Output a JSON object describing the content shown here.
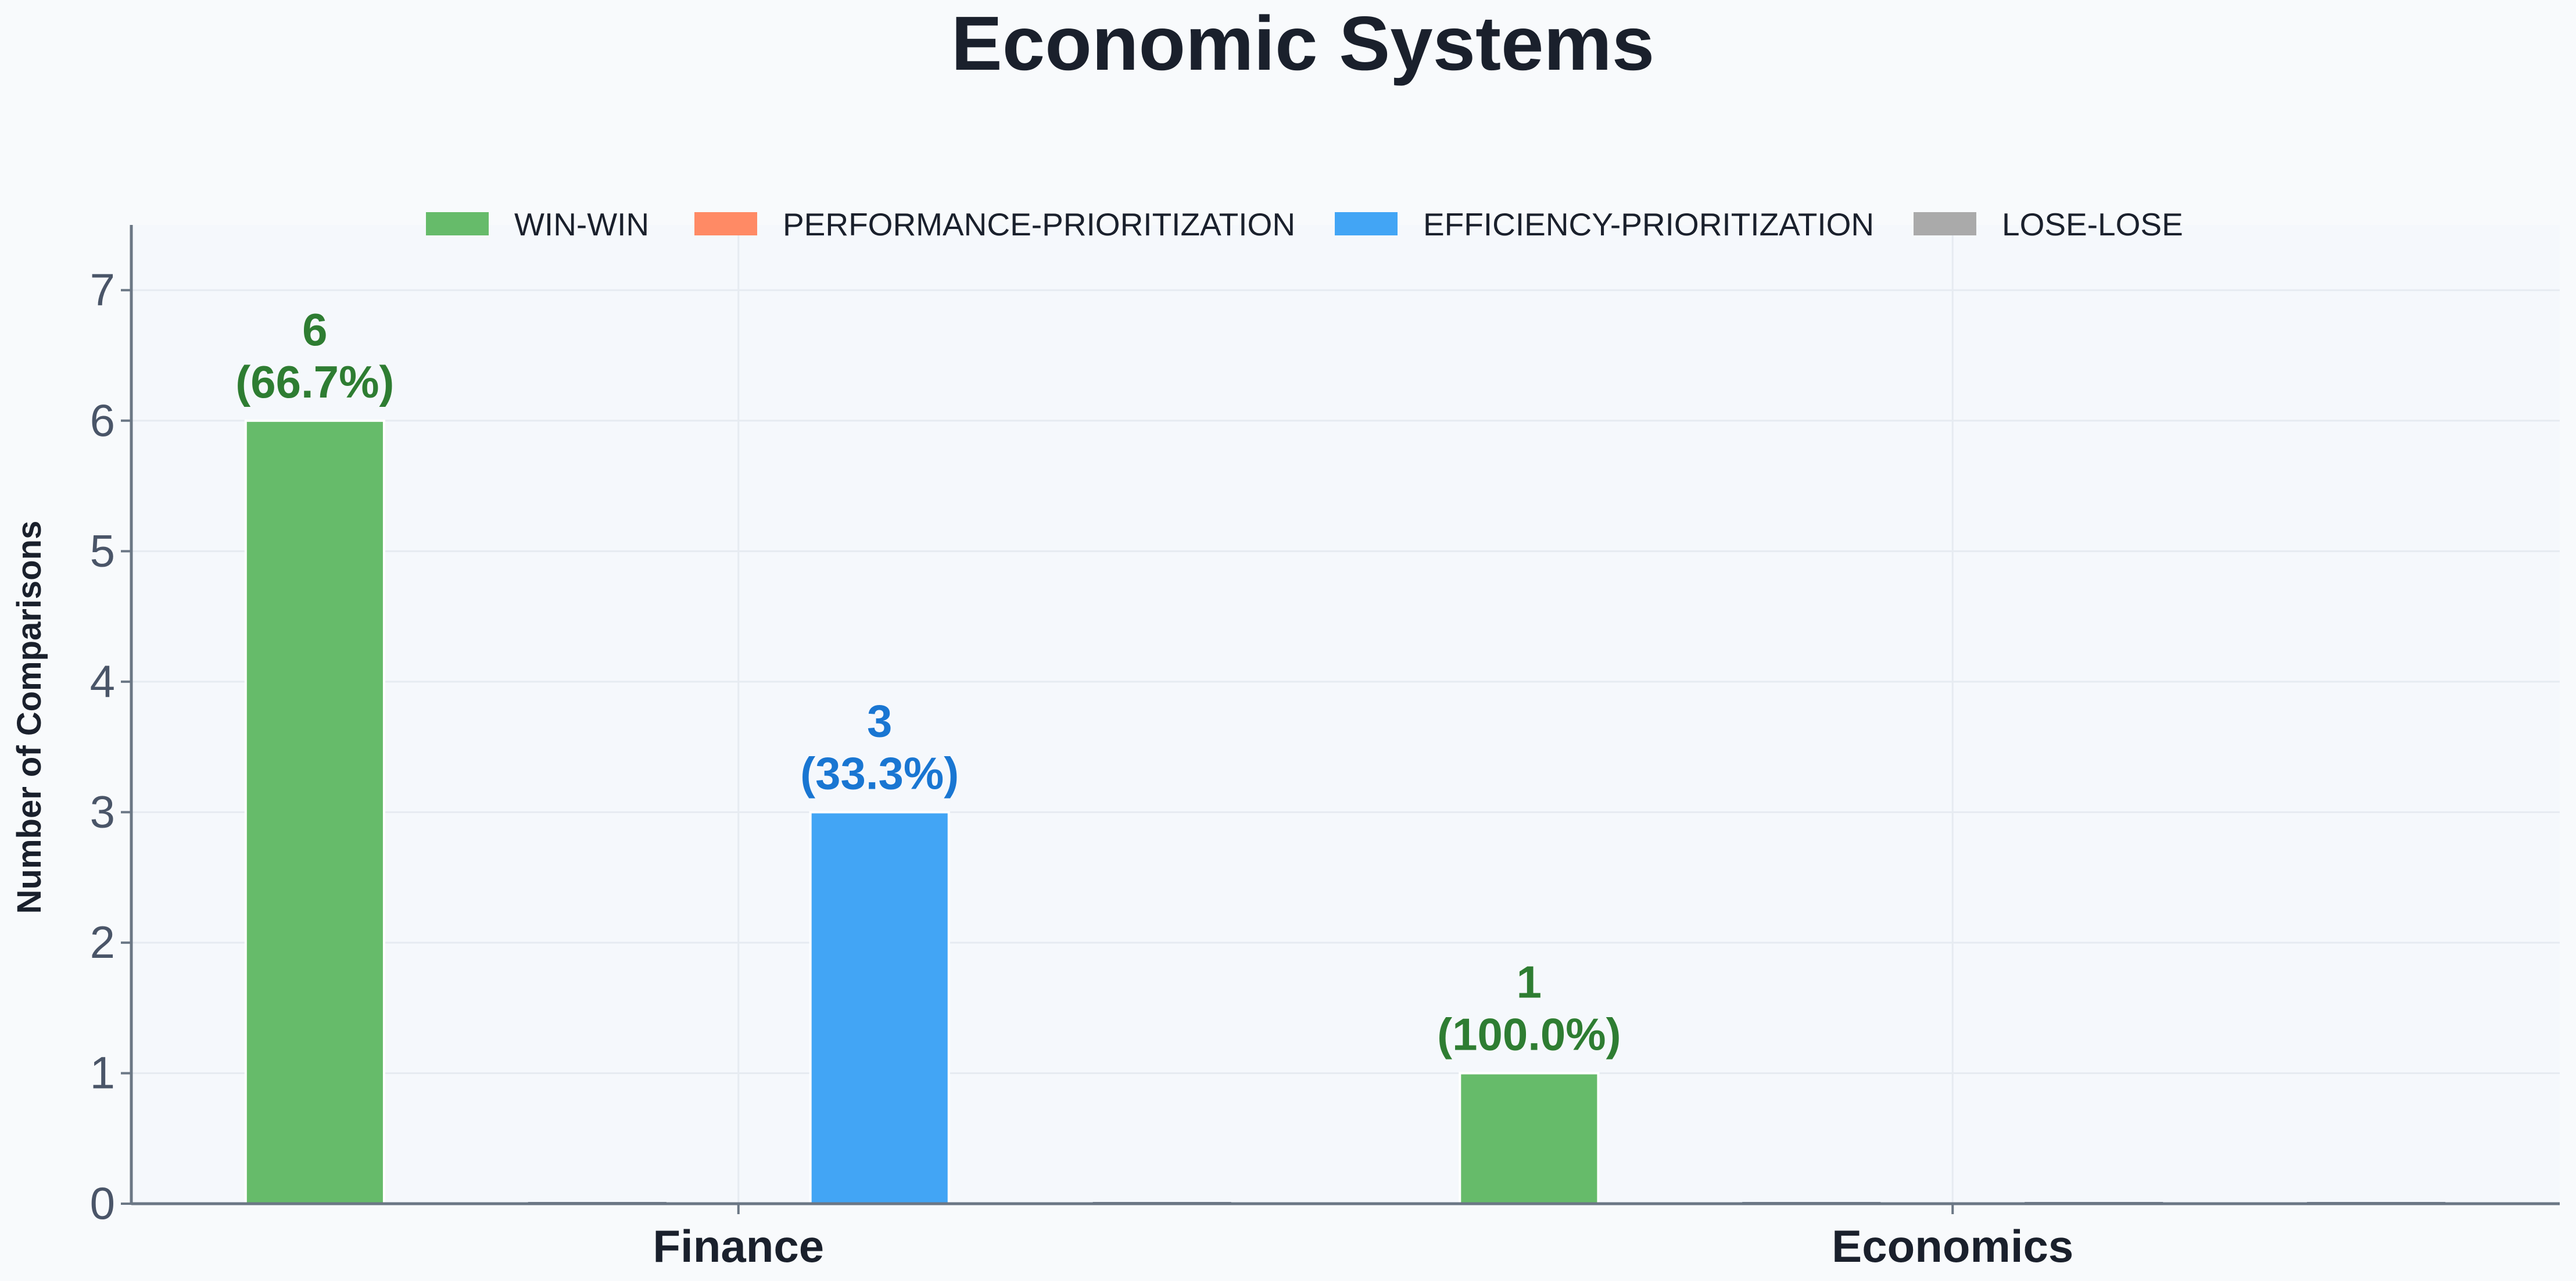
{
  "chart_data": {
    "type": "bar",
    "title": "Economic Systems",
    "xlabel": "",
    "ylabel": "Number of Comparisons",
    "categories": [
      "Finance",
      "Economics"
    ],
    "ylim": [
      0,
      7.5
    ],
    "yticks": [
      0,
      1,
      2,
      3,
      4,
      5,
      6,
      7
    ],
    "grid": true,
    "legend_position": "top-center",
    "series": [
      {
        "name": "WIN-WIN",
        "color": "#66bb6a",
        "label_color": "#2e7d32",
        "values": [
          6,
          1
        ],
        "labels": [
          "6\n(66.7%)",
          "1\n(100.0%)"
        ]
      },
      {
        "name": "PERFORMANCE-PRIORITIZATION",
        "color": "#ff8a65",
        "label_color": "#d84315",
        "values": [
          0,
          0
        ],
        "labels": [
          "",
          ""
        ]
      },
      {
        "name": "EFFICIENCY-PRIORITIZATION",
        "color": "#42a5f5",
        "label_color": "#1976d2",
        "values": [
          3,
          0
        ],
        "labels": [
          "3\n(33.3%)",
          ""
        ]
      },
      {
        "name": "LOSE-LOSE",
        "color": "#aaaaaa",
        "label_color": "#616161",
        "values": [
          0,
          0
        ],
        "labels": [
          "",
          ""
        ]
      }
    ]
  }
}
